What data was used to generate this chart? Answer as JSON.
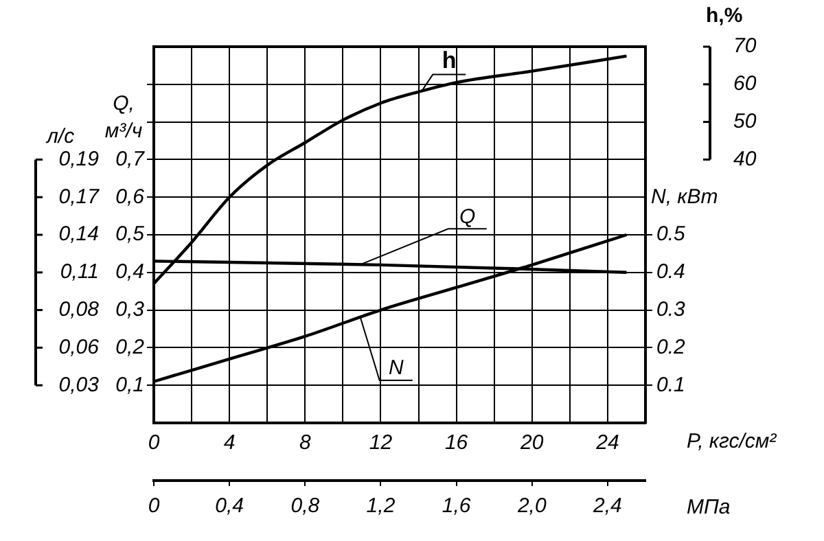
{
  "chart_data": {
    "type": "line",
    "xlabel": "P, кгс/см²",
    "x2label": "МПа",
    "ylabel": "Q, м³/ч",
    "y2label": "N, кВт",
    "y3label": "h,%",
    "annotations": [
      "л/с",
      "0,03",
      "0,06",
      "0,08",
      "0,11",
      "0,14",
      "0,17",
      "0,19"
    ],
    "series": [
      {
        "name": "h",
        "color": "#000000",
        "axis": "y3",
        "x": [
          0,
          2,
          4,
          6,
          8,
          10,
          12,
          14,
          16,
          20,
          25
        ],
        "values": [
          7,
          18,
          30,
          38.5,
          44.5,
          50.5,
          55,
          58,
          60.5,
          63.5,
          67.5
        ]
      },
      {
        "name": "Q",
        "color": "#000000",
        "x": [
          0,
          12,
          19,
          25
        ],
        "values": [
          0.43,
          0.42,
          0.41,
          0.4
        ]
      },
      {
        "name": "N",
        "color": "#000000",
        "axis": "y2",
        "x": [
          0,
          4,
          8,
          12,
          16,
          20,
          25
        ],
        "values": [
          0.11,
          0.17,
          0.23,
          0.3,
          0.36,
          0.42,
          0.5
        ]
      }
    ],
    "xlim": [
      0,
      26
    ],
    "xticks": [
      0,
      {
        "value": 2,
        "label": null
      },
      4,
      {
        "value": 6,
        "label": null
      },
      8,
      {
        "value": 10,
        "label": null
      },
      12,
      {
        "value": 14,
        "label": null
      },
      16,
      {
        "value": 18,
        "label": null
      },
      20,
      {
        "value": 22,
        "label": null
      },
      24
    ],
    "x2lim": [
      0,
      2.6
    ],
    "x2ticks": [
      0,
      {
        "value": 0.4,
        "label": "0,4"
      },
      {
        "value": 0.8,
        "label": "0,8"
      },
      {
        "value": 1.2,
        "label": "1,2"
      },
      {
        "value": 1.6,
        "label": "1,6"
      },
      {
        "value": 2.0,
        "label": "2,0"
      },
      {
        "value": 2.4,
        "label": "2,4"
      }
    ],
    "ylim": [
      0,
      1
    ],
    "yticks": [
      {
        "value": 0.1,
        "label": "0,1"
      },
      {
        "value": 0.2,
        "label": "0,2"
      },
      {
        "value": 0.3,
        "label": "0,3"
      },
      {
        "value": 0.4,
        "label": "0,4"
      },
      {
        "value": 0.5,
        "label": "0,5"
      },
      {
        "value": 0.6,
        "label": "0,6"
      },
      {
        "value": 0.7,
        "label": "0,7"
      },
      {
        "value": 0.8,
        "label": null
      },
      {
        "value": 0.9,
        "label": null
      }
    ],
    "y2lim": [
      0,
      1
    ],
    "y2ticks": [
      0.1,
      0.2,
      0.3,
      0.4,
      0.5
    ],
    "y3lim": [
      -30,
      70
    ],
    "y3ticks": [
      40,
      50,
      60,
      70
    ],
    "grid": true,
    "legend": false,
    "marker": "none",
    "line_style": "solid"
  }
}
